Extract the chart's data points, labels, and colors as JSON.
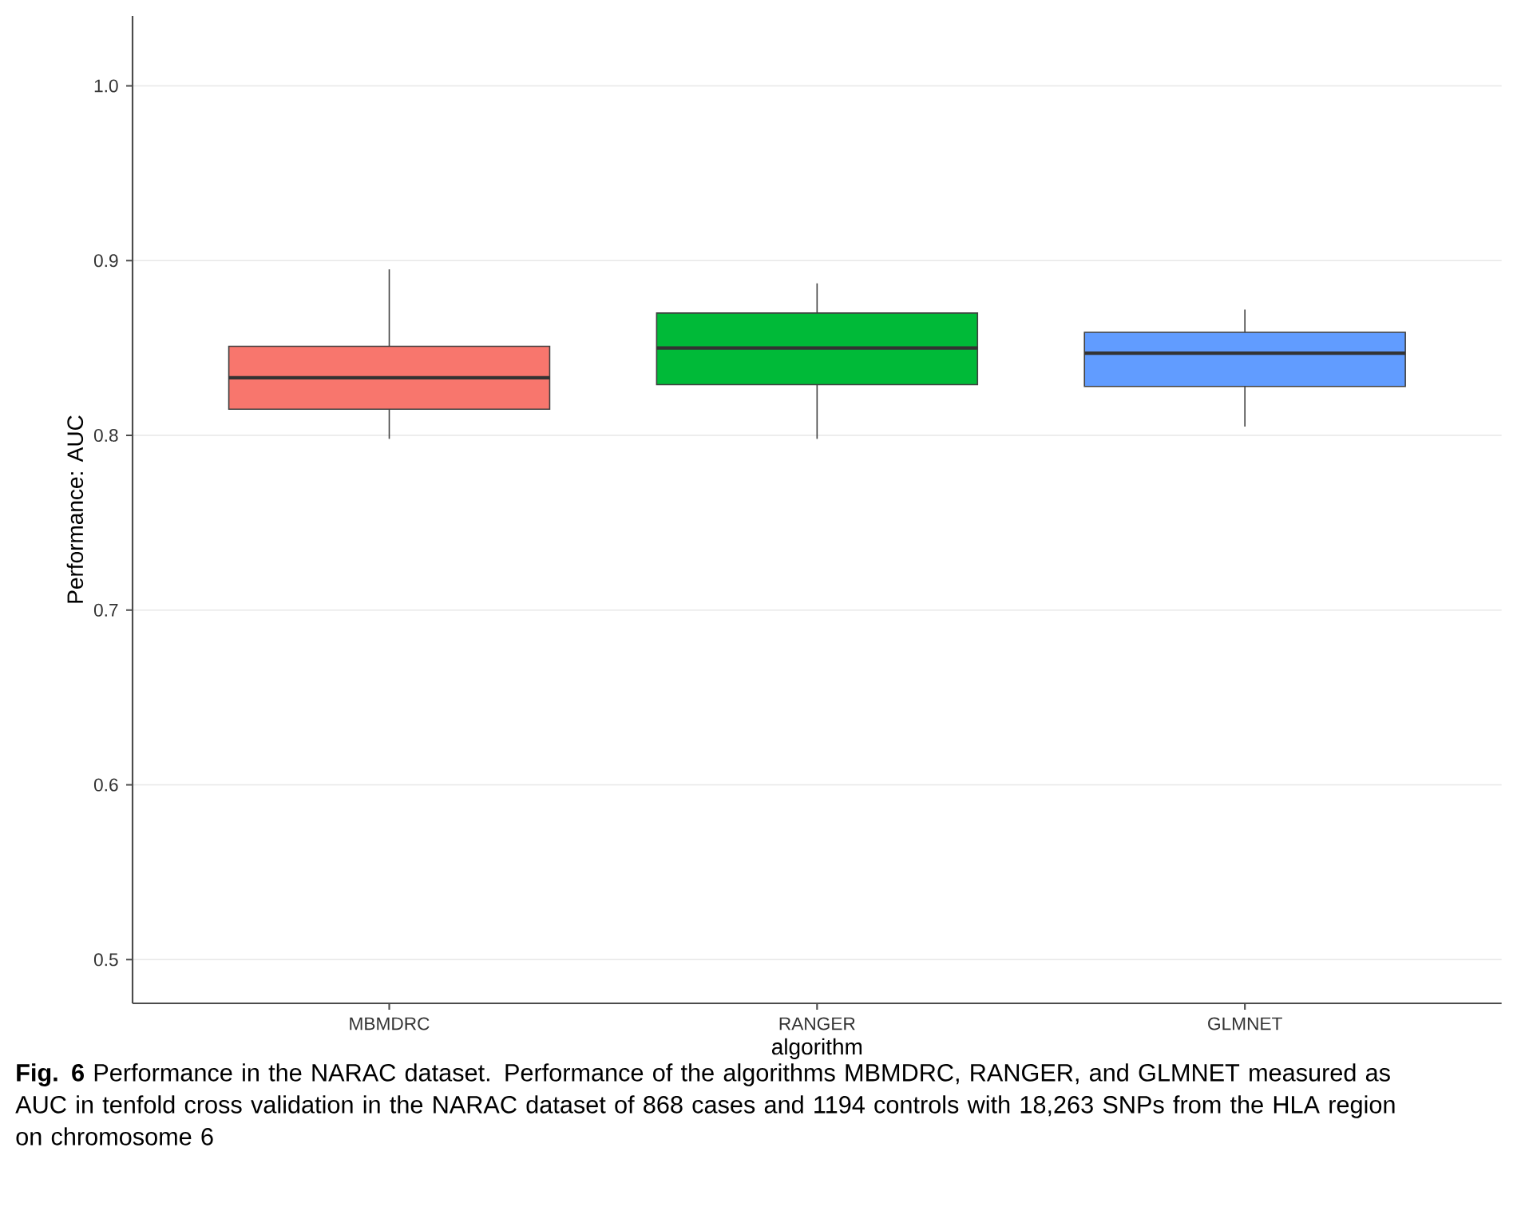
{
  "chart_data": {
    "type": "box",
    "xlabel": "algorithm",
    "ylabel": "Performance: AUC",
    "categories": [
      "MBMDRC",
      "RANGER",
      "GLMNET"
    ],
    "boxes": [
      {
        "low": 0.798,
        "q1": 0.815,
        "median": 0.833,
        "q3": 0.851,
        "high": 0.895
      },
      {
        "low": 0.798,
        "q1": 0.829,
        "median": 0.85,
        "q3": 0.87,
        "high": 0.887
      },
      {
        "low": 0.805,
        "q1": 0.828,
        "median": 0.847,
        "q3": 0.859,
        "high": 0.872
      }
    ],
    "colors": [
      "#f8766d",
      "#00ba38",
      "#619cff"
    ],
    "ylim": [
      0.475,
      1.04
    ],
    "yticks": [
      0.5,
      0.6,
      0.7,
      0.8,
      0.9,
      {
        "value": 1.0,
        "label": "1.0"
      }
    ],
    "grid": "y",
    "annotations": [
      "**Fig. 6**  Performance in the NARAC dataset. Performance of the algorithms MBMDRC, RANGER, and GLMNET measured as AUC in tenfold cross validation in the NARAC dataset of 868 cases and 1194 controls with 18,263 SNPs from the HLA region on chromosome 6"
    ]
  }
}
